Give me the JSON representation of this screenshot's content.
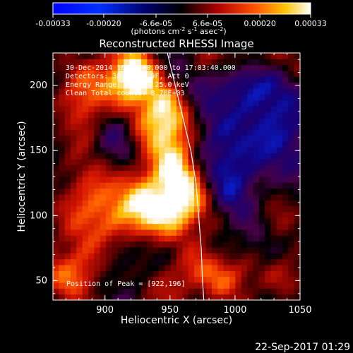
{
  "chart_data": {
    "type": "heatmap",
    "title": "Reconstructed RHESSI Image",
    "xlabel": "Heliocentric X (arcsec)",
    "ylabel": "Heliocentric Y (arcsec)",
    "xlim": [
      860,
      1050
    ],
    "ylim": [
      35,
      225
    ],
    "x_ticks": [
      "900",
      "950",
      "1000",
      "1050"
    ],
    "x_tick_values": [
      900,
      950,
      1000,
      1050
    ],
    "y_ticks": [
      "50",
      "100",
      "150",
      "200"
    ],
    "y_tick_values": [
      50,
      100,
      150,
      200
    ],
    "colorbar": {
      "min": -0.00033,
      "max": 0.00033,
      "tick_labels": [
        "-0.00033",
        "-0.00020",
        "-6.6e-05",
        "6.6e-05",
        "0.00020",
        "0.00033"
      ],
      "tick_values": [
        -0.00033,
        -0.0002,
        -6.6e-05,
        6.6e-05,
        0.0002,
        0.00033
      ],
      "unit_parts": {
        "prefix": "(photons cm",
        "exp1": "-2",
        "mid1": " s",
        "exp2": "-1",
        "mid2": " asec",
        "exp3": "-2",
        "suffix": ")"
      }
    },
    "annotations": [
      "30-Dec-2014 16:53:40.000 to 17:03:40.000",
      "Detectors: 3F 6F 7F 9F, Att 0",
      "Energy Range: 12.0 - 25.0 keV",
      "Clean    Total counts: 8.70E+03"
    ],
    "peak_text": "Position of Peak = [922,196]",
    "peak": {
      "x": 922,
      "y": 196
    },
    "limb_curve": [
      {
        "x": 948,
        "y": 225
      },
      {
        "x": 954,
        "y": 200
      },
      {
        "x": 960,
        "y": 175
      },
      {
        "x": 966,
        "y": 150
      },
      {
        "x": 970,
        "y": 125
      },
      {
        "x": 972,
        "y": 100
      },
      {
        "x": 974,
        "y": 75
      },
      {
        "x": 975,
        "y": 50
      },
      {
        "x": 976,
        "y": 35
      }
    ],
    "emission_sources": [
      {
        "x": 918,
        "y": 206,
        "amplitude": 1.0,
        "sigma_x": 15,
        "sigma_y": 15
      },
      {
        "x": 948,
        "y": 175,
        "amplitude": 0.85,
        "sigma_x": 14,
        "sigma_y": 18
      },
      {
        "x": 955,
        "y": 126,
        "amplitude": 0.95,
        "sigma_x": 18,
        "sigma_y": 24
      },
      {
        "x": 942,
        "y": 102,
        "amplitude": 0.78,
        "sigma_x": 22,
        "sigma_y": 16
      },
      {
        "x": 890,
        "y": 105,
        "amplitude": 0.6,
        "sigma_x": 18,
        "sigma_y": 28
      },
      {
        "x": 885,
        "y": 190,
        "amplitude": 0.55,
        "sigma_x": 14,
        "sigma_y": 22
      },
      {
        "x": 1010,
        "y": 220,
        "amplitude": 0.45,
        "sigma_x": 28,
        "sigma_y": 12
      },
      {
        "x": 1025,
        "y": 95,
        "amplitude": 0.38,
        "sigma_x": 16,
        "sigma_y": 30
      },
      {
        "x": 1005,
        "y": 55,
        "amplitude": 0.35,
        "sigma_x": 35,
        "sigma_y": 12
      },
      {
        "x": 875,
        "y": 55,
        "amplitude": 0.48,
        "sigma_x": 18,
        "sigma_y": 15
      },
      {
        "x": 965,
        "y": 55,
        "amplitude": 0.42,
        "sigma_x": 22,
        "sigma_y": 20
      },
      {
        "x": 925,
        "y": 150,
        "amplitude": 0.45,
        "sigma_x": 12,
        "sigma_y": 35
      }
    ],
    "negative_regions": [
      {
        "x": 915,
        "y": 155,
        "amplitude": -0.48,
        "sigma_x": 18,
        "sigma_y": 20
      },
      {
        "x": 995,
        "y": 135,
        "amplitude": -0.55,
        "sigma_x": 24,
        "sigma_y": 38
      },
      {
        "x": 1035,
        "y": 165,
        "amplitude": -0.45,
        "sigma_x": 18,
        "sigma_y": 28
      },
      {
        "x": 1005,
        "y": 205,
        "amplitude": -0.5,
        "sigma_x": 20,
        "sigma_y": 16
      },
      {
        "x": 930,
        "y": 70,
        "amplitude": -0.35,
        "sigma_x": 20,
        "sigma_y": 18
      },
      {
        "x": 1020,
        "y": 70,
        "amplitude": -0.35,
        "sigma_x": 12,
        "sigma_y": 16
      }
    ]
  },
  "timestamp": "22-Sep-2017 01:29"
}
